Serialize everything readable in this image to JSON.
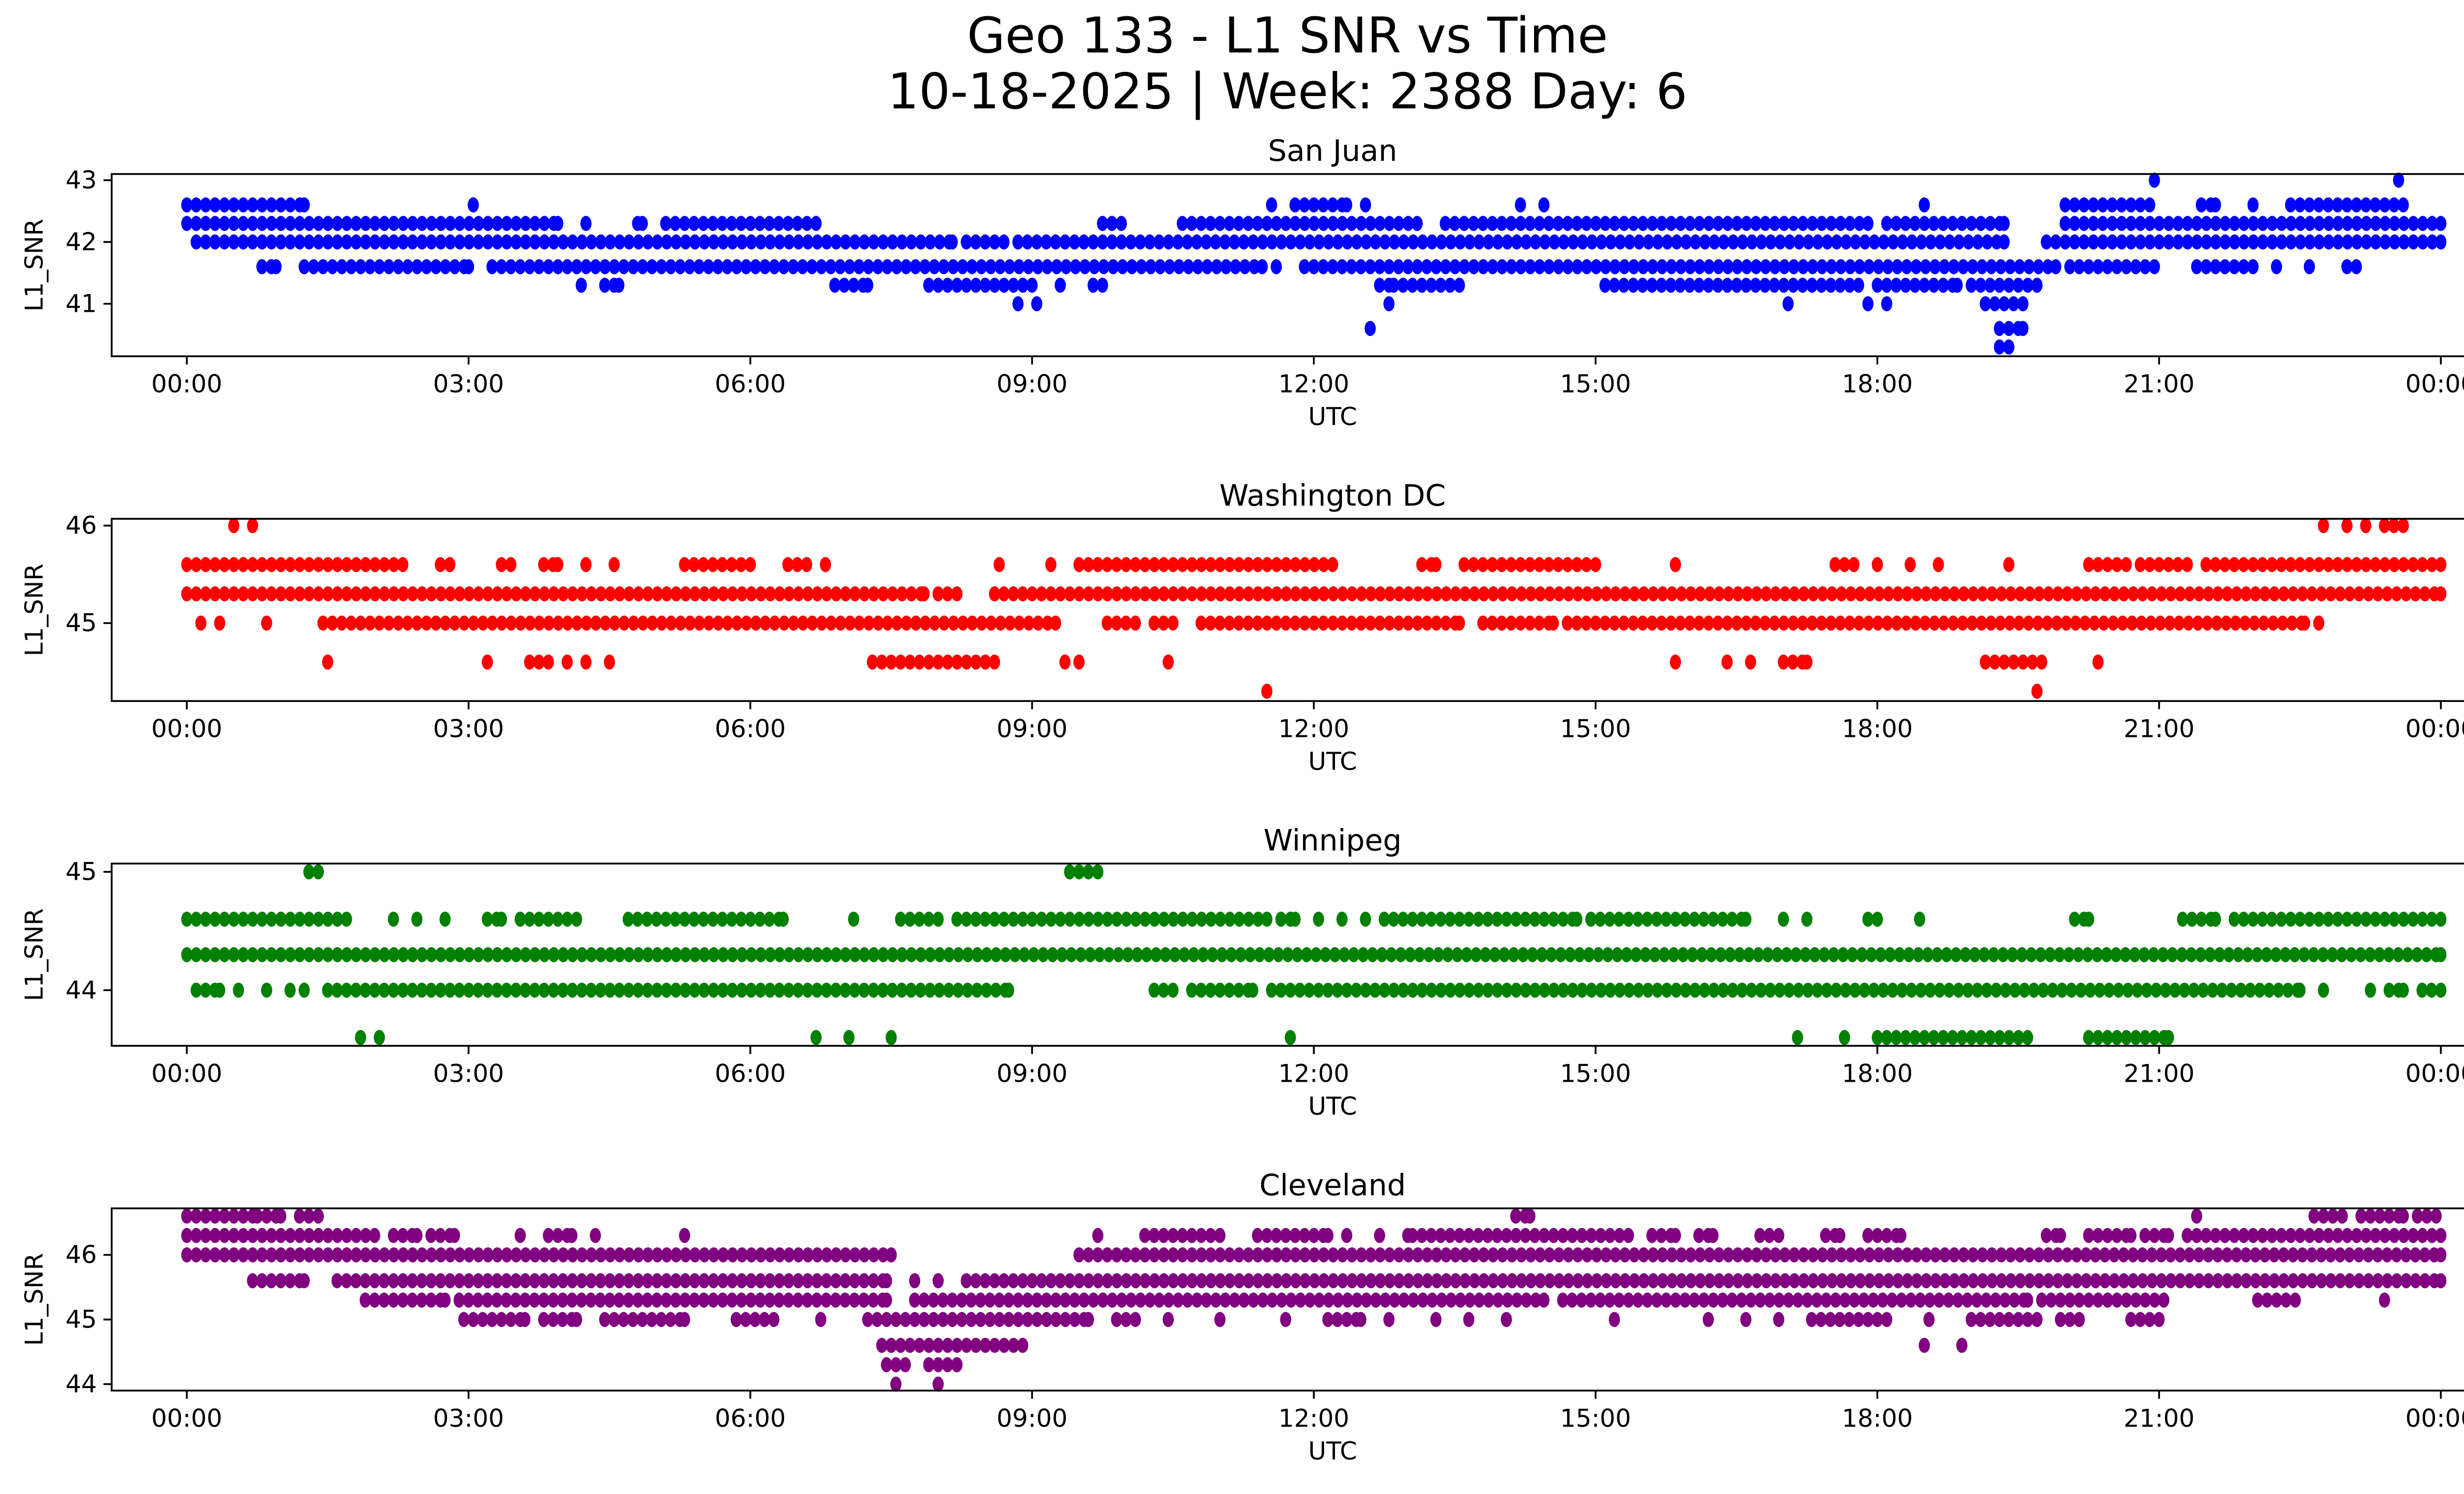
{
  "figure": {
    "title_line_1": "Geo 133 - L1 SNR vs Time",
    "title_line_2": "10-18-2025 | Week: 2388 Day: 6"
  },
  "chart_data": [
    {
      "type": "scatter",
      "title": "San Juan",
      "xlabel": "UTC",
      "ylabel": "L1_SNR",
      "color": "#0000ff",
      "x_unit": "hours UTC",
      "xlim": [
        -0.8,
        25.2
      ],
      "ylim": [
        40.15,
        43.1
      ],
      "x_ticks": [
        0,
        3,
        6,
        9,
        12,
        15,
        18,
        21,
        24
      ],
      "x_tick_labels": [
        "00:00",
        "03:00",
        "06:00",
        "09:00",
        "12:00",
        "15:00",
        "18:00",
        "21:00",
        "00:00"
      ],
      "y_ticks": [
        41,
        42,
        43
      ],
      "y_tick_labels": [
        "41",
        "42",
        "43"
      ],
      "grid": false,
      "point_spacing_hours": 0.0167,
      "runs": [
        [
          0.0,
          1.25,
          42.6
        ],
        [
          11.8,
          12.35,
          42.6
        ],
        [
          20.0,
          20.3,
          42.6
        ],
        [
          20.4,
          20.9,
          42.6
        ],
        [
          21.45,
          21.6,
          42.6
        ],
        [
          22.4,
          23.6,
          42.6
        ],
        [
          0.0,
          3.95,
          42.3
        ],
        [
          4.8,
          4.85,
          42.3
        ],
        [
          5.1,
          6.7,
          42.3
        ],
        [
          9.75,
          9.95,
          42.3
        ],
        [
          10.6,
          13.1,
          42.3
        ],
        [
          13.4,
          17.9,
          42.3
        ],
        [
          18.1,
          19.35,
          42.3
        ],
        [
          20.0,
          24.0,
          42.3
        ],
        [
          0.1,
          8.15,
          42.0
        ],
        [
          8.3,
          8.7,
          42.0
        ],
        [
          8.85,
          19.35,
          42.0
        ],
        [
          19.8,
          24.0,
          42.0
        ],
        [
          0.8,
          0.95,
          41.6
        ],
        [
          1.25,
          3.0,
          41.6
        ],
        [
          3.25,
          11.45,
          41.6
        ],
        [
          11.9,
          19.9,
          41.6
        ],
        [
          20.05,
          20.95,
          41.6
        ],
        [
          21.4,
          22.0,
          41.6
        ],
        [
          23.0,
          23.1,
          41.6
        ],
        [
          4.45,
          4.6,
          41.3
        ],
        [
          6.9,
          7.25,
          41.3
        ],
        [
          7.9,
          9.0,
          41.3
        ],
        [
          9.65,
          9.75,
          41.3
        ],
        [
          12.7,
          12.85,
          41.3
        ],
        [
          12.95,
          13.55,
          41.3
        ],
        [
          15.1,
          17.8,
          41.3
        ],
        [
          18.0,
          18.85,
          41.3
        ],
        [
          19.0,
          19.7,
          41.3
        ],
        [
          19.15,
          19.55,
          41.0
        ],
        [
          19.3,
          19.55,
          40.6
        ],
        [
          19.3,
          19.4,
          40.3
        ]
      ],
      "points": [
        [
          3.05,
          42.6
        ],
        [
          11.55,
          42.6
        ],
        [
          12.55,
          42.6
        ],
        [
          14.2,
          42.6
        ],
        [
          14.45,
          42.6
        ],
        [
          18.5,
          42.6
        ],
        [
          22.0,
          42.6
        ],
        [
          20.95,
          43.0
        ],
        [
          23.55,
          43.0
        ],
        [
          4.25,
          42.3
        ],
        [
          11.6,
          41.6
        ],
        [
          22.25,
          41.6
        ],
        [
          22.6,
          41.6
        ],
        [
          4.2,
          41.3
        ],
        [
          9.3,
          41.3
        ],
        [
          8.85,
          41.0
        ],
        [
          9.05,
          41.0
        ],
        [
          12.8,
          41.0
        ],
        [
          17.05,
          41.0
        ],
        [
          17.9,
          41.0
        ],
        [
          18.1,
          41.0
        ],
        [
          12.6,
          40.6
        ]
      ]
    },
    {
      "type": "scatter",
      "title": "Washington DC",
      "xlabel": "UTC",
      "ylabel": "L1_SNR",
      "color": "#ff0000",
      "x_unit": "hours UTC",
      "xlim": [
        -0.8,
        25.2
      ],
      "ylim": [
        44.2,
        46.07
      ],
      "x_ticks": [
        0,
        3,
        6,
        9,
        12,
        15,
        18,
        21,
        24
      ],
      "x_tick_labels": [
        "00:00",
        "03:00",
        "06:00",
        "09:00",
        "12:00",
        "15:00",
        "18:00",
        "21:00",
        "00:00"
      ],
      "y_ticks": [
        45,
        46
      ],
      "y_tick_labels": [
        "45",
        "46"
      ],
      "grid": false,
      "point_spacing_hours": 0.0167,
      "runs": [
        [
          23.4,
          23.6,
          46.0
        ],
        [
          0.0,
          2.3,
          45.6
        ],
        [
          2.7,
          2.8,
          45.6
        ],
        [
          3.35,
          3.45,
          45.6
        ],
        [
          3.8,
          3.95,
          45.6
        ],
        [
          5.3,
          6.0,
          45.6
        ],
        [
          6.4,
          6.6,
          45.6
        ],
        [
          9.5,
          12.2,
          45.6
        ],
        [
          13.15,
          13.3,
          45.6
        ],
        [
          13.6,
          15.0,
          45.6
        ],
        [
          17.55,
          17.75,
          45.6
        ],
        [
          20.25,
          20.65,
          45.6
        ],
        [
          20.8,
          21.3,
          45.6
        ],
        [
          21.5,
          24.0,
          45.6
        ],
        [
          0.0,
          7.85,
          45.3
        ],
        [
          8.0,
          8.2,
          45.3
        ],
        [
          8.6,
          24.0,
          45.3
        ],
        [
          1.45,
          9.25,
          45.0
        ],
        [
          9.8,
          10.1,
          45.0
        ],
        [
          10.3,
          10.5,
          45.0
        ],
        [
          10.8,
          13.55,
          45.0
        ],
        [
          13.8,
          14.55,
          45.0
        ],
        [
          14.7,
          22.55,
          45.0
        ],
        [
          3.65,
          3.85,
          44.6
        ],
        [
          7.3,
          8.6,
          44.6
        ],
        [
          17.0,
          17.25,
          44.6
        ],
        [
          19.15,
          19.75,
          44.6
        ]
      ],
      "points": [
        [
          0.5,
          46.0
        ],
        [
          0.7,
          46.0
        ],
        [
          22.75,
          46.0
        ],
        [
          23.0,
          46.0
        ],
        [
          23.2,
          46.0
        ],
        [
          4.25,
          45.6
        ],
        [
          4.55,
          45.6
        ],
        [
          6.8,
          45.6
        ],
        [
          8.65,
          45.6
        ],
        [
          9.2,
          45.6
        ],
        [
          15.85,
          45.6
        ],
        [
          18.0,
          45.6
        ],
        [
          18.35,
          45.6
        ],
        [
          18.65,
          45.6
        ],
        [
          19.4,
          45.6
        ],
        [
          0.15,
          45.0
        ],
        [
          0.35,
          45.0
        ],
        [
          0.85,
          45.0
        ],
        [
          22.7,
          45.0
        ],
        [
          1.5,
          44.6
        ],
        [
          3.2,
          44.6
        ],
        [
          4.05,
          44.6
        ],
        [
          4.25,
          44.6
        ],
        [
          4.5,
          44.6
        ],
        [
          9.35,
          44.6
        ],
        [
          9.5,
          44.6
        ],
        [
          10.45,
          44.6
        ],
        [
          15.85,
          44.6
        ],
        [
          16.4,
          44.6
        ],
        [
          16.65,
          44.6
        ],
        [
          20.35,
          44.6
        ],
        [
          11.5,
          44.3
        ],
        [
          19.7,
          44.3
        ]
      ]
    },
    {
      "type": "scatter",
      "title": "Winnipeg",
      "xlabel": "UTC",
      "ylabel": "L1_SNR",
      "color": "#008000",
      "x_unit": "hours UTC",
      "xlim": [
        -0.8,
        25.2
      ],
      "ylim": [
        43.53,
        45.07
      ],
      "x_ticks": [
        0,
        3,
        6,
        9,
        12,
        15,
        18,
        21,
        24
      ],
      "x_tick_labels": [
        "00:00",
        "03:00",
        "06:00",
        "09:00",
        "12:00",
        "15:00",
        "18:00",
        "21:00",
        "00:00"
      ],
      "y_ticks": [
        44,
        45
      ],
      "y_tick_labels": [
        "44",
        "45"
      ],
      "grid": false,
      "point_spacing_hours": 0.0167,
      "runs": [
        [
          1.3,
          1.4,
          45.0
        ],
        [
          9.4,
          9.7,
          45.0
        ],
        [
          0.0,
          1.7,
          44.6
        ],
        [
          3.2,
          3.35,
          44.6
        ],
        [
          3.55,
          4.15,
          44.6
        ],
        [
          4.7,
          6.35,
          44.6
        ],
        [
          7.6,
          8.0,
          44.6
        ],
        [
          8.2,
          11.5,
          44.6
        ],
        [
          11.65,
          11.8,
          44.6
        ],
        [
          12.75,
          14.8,
          44.6
        ],
        [
          14.95,
          16.6,
          44.6
        ],
        [
          17.9,
          18.0,
          44.6
        ],
        [
          20.1,
          20.25,
          44.6
        ],
        [
          21.25,
          21.6,
          44.6
        ],
        [
          21.8,
          24.0,
          44.6
        ],
        [
          0.0,
          24.0,
          44.3
        ],
        [
          0.1,
          0.35,
          44.0
        ],
        [
          1.5,
          8.75,
          44.0
        ],
        [
          10.3,
          10.5,
          44.0
        ],
        [
          10.7,
          11.35,
          44.0
        ],
        [
          11.55,
          22.5,
          44.0
        ],
        [
          23.45,
          23.6,
          44.0
        ],
        [
          23.8,
          24.0,
          44.0
        ],
        [
          18.0,
          19.6,
          43.6
        ],
        [
          20.25,
          21.1,
          43.6
        ]
      ],
      "points": [
        [
          2.2,
          44.6
        ],
        [
          2.45,
          44.6
        ],
        [
          2.75,
          44.6
        ],
        [
          7.1,
          44.6
        ],
        [
          12.05,
          44.6
        ],
        [
          12.3,
          44.6
        ],
        [
          12.55,
          44.6
        ],
        [
          17.0,
          44.6
        ],
        [
          17.25,
          44.6
        ],
        [
          18.45,
          44.6
        ],
        [
          0.55,
          44.0
        ],
        [
          0.85,
          44.0
        ],
        [
          1.1,
          44.0
        ],
        [
          1.25,
          44.0
        ],
        [
          22.75,
          44.0
        ],
        [
          23.25,
          44.0
        ],
        [
          1.85,
          43.6
        ],
        [
          2.05,
          43.6
        ],
        [
          6.7,
          43.6
        ],
        [
          7.05,
          43.6
        ],
        [
          7.5,
          43.6
        ],
        [
          11.75,
          43.6
        ],
        [
          17.15,
          43.6
        ],
        [
          17.65,
          43.6
        ]
      ]
    },
    {
      "type": "scatter",
      "title": "Cleveland",
      "xlabel": "UTC",
      "ylabel": "L1_SNR",
      "color": "#800080",
      "x_unit": "hours UTC",
      "xlim": [
        -0.8,
        25.2
      ],
      "ylim": [
        43.9,
        46.72
      ],
      "x_ticks": [
        0,
        3,
        6,
        9,
        12,
        15,
        18,
        21,
        24
      ],
      "x_tick_labels": [
        "00:00",
        "03:00",
        "06:00",
        "09:00",
        "12:00",
        "15:00",
        "18:00",
        "21:00",
        "00:00"
      ],
      "y_ticks": [
        44,
        45,
        46
      ],
      "y_tick_labels": [
        "44",
        "45",
        "46"
      ],
      "grid": false,
      "point_spacing_hours": 0.0167,
      "runs": [
        [
          0.0,
          0.75,
          46.6
        ],
        [
          0.85,
          1.0,
          46.6
        ],
        [
          1.2,
          1.4,
          46.6
        ],
        [
          14.15,
          14.3,
          46.6
        ],
        [
          22.65,
          22.95,
          46.6
        ],
        [
          23.15,
          23.6,
          46.6
        ],
        [
          23.75,
          23.95,
          46.6
        ],
        [
          0.0,
          2.0,
          46.3
        ],
        [
          2.2,
          2.45,
          46.3
        ],
        [
          2.6,
          2.85,
          46.3
        ],
        [
          3.85,
          4.1,
          46.3
        ],
        [
          10.2,
          11.0,
          46.3
        ],
        [
          11.4,
          12.15,
          46.3
        ],
        [
          13.05,
          15.35,
          46.3
        ],
        [
          15.6,
          15.85,
          46.3
        ],
        [
          16.1,
          16.25,
          46.3
        ],
        [
          16.75,
          16.95,
          46.3
        ],
        [
          17.45,
          17.6,
          46.3
        ],
        [
          17.9,
          18.25,
          46.3
        ],
        [
          19.8,
          19.95,
          46.3
        ],
        [
          20.25,
          20.7,
          46.3
        ],
        [
          20.85,
          21.1,
          46.3
        ],
        [
          21.3,
          24.0,
          46.3
        ],
        [
          0.0,
          7.5,
          46.0
        ],
        [
          9.5,
          24.0,
          46.0
        ],
        [
          0.7,
          1.25,
          45.6
        ],
        [
          1.6,
          7.45,
          45.6
        ],
        [
          8.3,
          24.0,
          45.6
        ],
        [
          1.9,
          2.75,
          45.3
        ],
        [
          2.9,
          7.45,
          45.3
        ],
        [
          7.75,
          14.45,
          45.3
        ],
        [
          14.65,
          19.6,
          45.3
        ],
        [
          19.75,
          21.05,
          45.3
        ],
        [
          22.05,
          22.45,
          45.3
        ],
        [
          2.95,
          3.6,
          45.0
        ],
        [
          3.8,
          4.15,
          45.0
        ],
        [
          4.45,
          5.3,
          45.0
        ],
        [
          5.85,
          6.25,
          45.0
        ],
        [
          7.25,
          9.6,
          45.0
        ],
        [
          9.9,
          10.1,
          45.0
        ],
        [
          12.15,
          12.5,
          45.0
        ],
        [
          17.3,
          17.6,
          45.0
        ],
        [
          17.6,
          18.1,
          45.0
        ],
        [
          19.0,
          19.7,
          45.0
        ],
        [
          19.95,
          20.15,
          45.0
        ],
        [
          20.7,
          20.9,
          45.0
        ],
        [
          7.4,
          8.9,
          44.6
        ],
        [
          7.45,
          7.65,
          44.3
        ],
        [
          7.9,
          8.2,
          44.3
        ]
      ],
      "points": [
        [
          21.4,
          46.6
        ],
        [
          3.55,
          46.3
        ],
        [
          4.35,
          46.3
        ],
        [
          5.3,
          46.3
        ],
        [
          9.7,
          46.3
        ],
        [
          12.35,
          46.3
        ],
        [
          12.7,
          46.3
        ],
        [
          13.0,
          46.3
        ],
        [
          7.75,
          45.6
        ],
        [
          8.0,
          45.6
        ],
        [
          23.4,
          45.3
        ],
        [
          6.75,
          45.0
        ],
        [
          10.45,
          45.0
        ],
        [
          11.0,
          45.0
        ],
        [
          11.7,
          45.0
        ],
        [
          12.8,
          45.0
        ],
        [
          13.3,
          45.0
        ],
        [
          13.65,
          45.0
        ],
        [
          14.05,
          45.0
        ],
        [
          15.2,
          45.0
        ],
        [
          16.2,
          45.0
        ],
        [
          16.6,
          45.0
        ],
        [
          16.95,
          45.0
        ],
        [
          18.55,
          45.0
        ],
        [
          21.0,
          45.0
        ],
        [
          18.5,
          44.6
        ],
        [
          18.9,
          44.6
        ],
        [
          8.2,
          44.3
        ],
        [
          7.55,
          44.0
        ],
        [
          8.0,
          44.0
        ]
      ]
    }
  ]
}
